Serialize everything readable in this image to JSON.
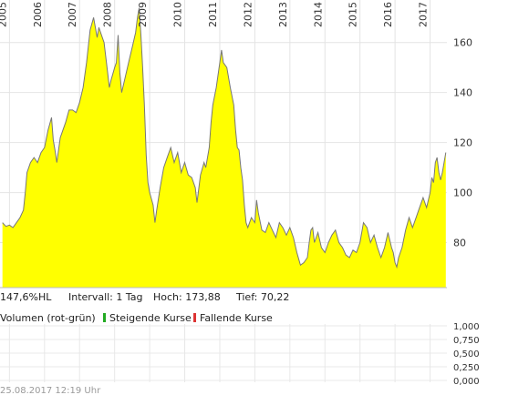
{
  "chart_data": [
    {
      "type": "area",
      "series": [
        {
          "values": [
            [
              2004.8,
              88
            ],
            [
              2004.9,
              86.5
            ],
            [
              2005.0,
              87
            ],
            [
              2005.1,
              86
            ],
            [
              2005.2,
              88
            ],
            [
              2005.3,
              90
            ],
            [
              2005.4,
              93
            ],
            [
              2005.45,
              100
            ],
            [
              2005.5,
              108
            ],
            [
              2005.6,
              112
            ],
            [
              2005.7,
              114
            ],
            [
              2005.8,
              112
            ],
            [
              2005.9,
              116
            ],
            [
              2006.0,
              118
            ],
            [
              2006.1,
              125
            ],
            [
              2006.2,
              130
            ],
            [
              2006.25,
              121
            ],
            [
              2006.3,
              117
            ],
            [
              2006.35,
              112
            ],
            [
              2006.45,
              122
            ],
            [
              2006.6,
              128
            ],
            [
              2006.7,
              133
            ],
            [
              2006.8,
              133
            ],
            [
              2006.9,
              132
            ],
            [
              2007.0,
              136
            ],
            [
              2007.1,
              142
            ],
            [
              2007.2,
              152
            ],
            [
              2007.3,
              165
            ],
            [
              2007.4,
              170
            ],
            [
              2007.5,
              162
            ],
            [
              2007.55,
              166
            ],
            [
              2007.7,
              160
            ],
            [
              2007.8,
              148
            ],
            [
              2007.85,
              142
            ],
            [
              2007.9,
              145
            ],
            [
              2008.0,
              150
            ],
            [
              2008.05,
              152
            ],
            [
              2008.1,
              163
            ],
            [
              2008.15,
              148
            ],
            [
              2008.2,
              140
            ],
            [
              2008.3,
              146
            ],
            [
              2008.4,
              152
            ],
            [
              2008.5,
              158
            ],
            [
              2008.6,
              164
            ],
            [
              2008.65,
              170
            ],
            [
              2008.7,
              173.88
            ],
            [
              2008.75,
              163
            ],
            [
              2008.8,
              150
            ],
            [
              2008.85,
              135
            ],
            [
              2008.9,
              115
            ],
            [
              2008.95,
              104
            ],
            [
              2009.0,
              100
            ],
            [
              2009.1,
              95
            ],
            [
              2009.15,
              88
            ],
            [
              2009.2,
              93
            ],
            [
              2009.3,
              102
            ],
            [
              2009.4,
              110
            ],
            [
              2009.5,
              114
            ],
            [
              2009.6,
              118
            ],
            [
              2009.7,
              112
            ],
            [
              2009.8,
              116
            ],
            [
              2009.9,
              108
            ],
            [
              2010.0,
              112
            ],
            [
              2010.1,
              107
            ],
            [
              2010.2,
              106
            ],
            [
              2010.3,
              102
            ],
            [
              2010.35,
              96
            ],
            [
              2010.45,
              107
            ],
            [
              2010.55,
              112
            ],
            [
              2010.6,
              110
            ],
            [
              2010.7,
              118
            ],
            [
              2010.75,
              128
            ],
            [
              2010.8,
              135
            ],
            [
              2010.9,
              142
            ],
            [
              2011.0,
              152
            ],
            [
              2011.05,
              157
            ],
            [
              2011.1,
              152
            ],
            [
              2011.2,
              150
            ],
            [
              2011.3,
              142
            ],
            [
              2011.4,
              135
            ],
            [
              2011.45,
              125
            ],
            [
              2011.5,
              118
            ],
            [
              2011.55,
              117
            ],
            [
              2011.6,
              110
            ],
            [
              2011.65,
              105
            ],
            [
              2011.7,
              95
            ],
            [
              2011.75,
              88
            ],
            [
              2011.8,
              86
            ],
            [
              2011.9,
              90
            ],
            [
              2012.0,
              88
            ],
            [
              2012.05,
              97
            ],
            [
              2012.1,
              92
            ],
            [
              2012.2,
              85
            ],
            [
              2012.3,
              84
            ],
            [
              2012.4,
              88
            ],
            [
              2012.5,
              85
            ],
            [
              2012.6,
              82
            ],
            [
              2012.7,
              88
            ],
            [
              2012.8,
              86
            ],
            [
              2012.9,
              83
            ],
            [
              2013.0,
              86
            ],
            [
              2013.1,
              82
            ],
            [
              2013.2,
              76
            ],
            [
              2013.3,
              71
            ],
            [
              2013.4,
              72
            ],
            [
              2013.5,
              74
            ],
            [
              2013.55,
              80
            ],
            [
              2013.6,
              85
            ],
            [
              2013.65,
              86
            ],
            [
              2013.7,
              80
            ],
            [
              2013.8,
              84
            ],
            [
              2013.9,
              78
            ],
            [
              2014.0,
              76
            ],
            [
              2014.1,
              80
            ],
            [
              2014.2,
              83
            ],
            [
              2014.3,
              85
            ],
            [
              2014.4,
              80
            ],
            [
              2014.5,
              78
            ],
            [
              2014.6,
              75
            ],
            [
              2014.7,
              74
            ],
            [
              2014.8,
              77
            ],
            [
              2014.9,
              76
            ],
            [
              2015.0,
              80
            ],
            [
              2015.1,
              88
            ],
            [
              2015.2,
              86
            ],
            [
              2015.3,
              80
            ],
            [
              2015.4,
              83
            ],
            [
              2015.5,
              78
            ],
            [
              2015.6,
              74
            ],
            [
              2015.7,
              78
            ],
            [
              2015.8,
              84
            ],
            [
              2015.9,
              78
            ],
            [
              2015.95,
              76
            ],
            [
              2016.0,
              72
            ],
            [
              2016.05,
              70.22
            ],
            [
              2016.1,
              74
            ],
            [
              2016.2,
              78
            ],
            [
              2016.3,
              85
            ],
            [
              2016.4,
              90
            ],
            [
              2016.5,
              86
            ],
            [
              2016.6,
              90
            ],
            [
              2016.7,
              94
            ],
            [
              2016.8,
              98
            ],
            [
              2016.9,
              94
            ],
            [
              2017.0,
              100
            ],
            [
              2017.05,
              106
            ],
            [
              2017.1,
              104
            ],
            [
              2017.15,
              112
            ],
            [
              2017.2,
              114
            ],
            [
              2017.25,
              108
            ],
            [
              2017.3,
              105
            ],
            [
              2017.35,
              108
            ],
            [
              2017.45,
              116
            ]
          ]
        }
      ],
      "x_ticks": [
        "2005",
        "2006",
        "2007",
        "2008",
        "2009",
        "2010",
        "2011",
        "2012",
        "2013",
        "2014",
        "2015",
        "2016",
        "2017"
      ],
      "y_ticks": [
        "160",
        "140",
        "120",
        "100",
        "80"
      ],
      "xlim": [
        2004.73,
        2017.48
      ],
      "ylim": [
        62,
        177
      ],
      "grid": true,
      "fill_color": "#ffff00",
      "line_color": "#777777"
    },
    {
      "type": "bar",
      "series": [
        {
          "name": "Steigende Kurse",
          "values": []
        },
        {
          "name": "Fallende Kurse",
          "values": []
        }
      ],
      "ylabel": "Volumen (rot-grün)",
      "y_ticks": [
        "1,000",
        "0,750",
        "0,500",
        "0,250",
        "0,000"
      ],
      "ylim": [
        0,
        1
      ],
      "grid": true
    }
  ],
  "info_bar": {
    "change": "147,6%HL",
    "interval": "Intervall: 1 Tag",
    "high": "Hoch:  173,88",
    "low": "Tief:  70,22"
  },
  "volume_legend": {
    "title": "Volumen (rot-grün)",
    "rising": "Steigende Kurse",
    "falling": "Fallende Kurse",
    "rising_color": "#22aa22",
    "falling_color": "#dd3333"
  },
  "timestamp": "25.08.2017 12:19 Uhr"
}
